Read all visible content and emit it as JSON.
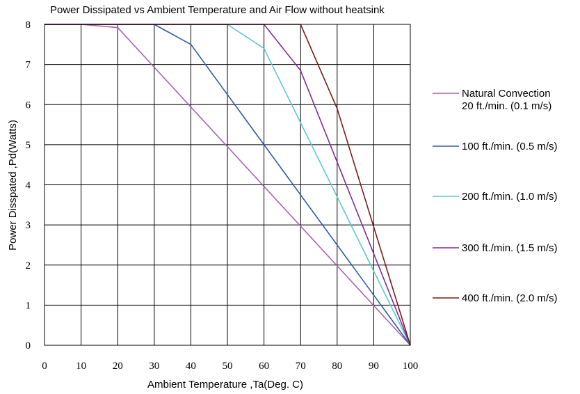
{
  "chart_data": {
    "type": "line",
    "title": "Power Dissipated vs Ambient Temperature and Air Flow without heatsink",
    "xlabel": "Ambient Temperature ,Ta(Deg. C)",
    "ylabel": "Power Disspated ,Pd(Watts)",
    "xlim": [
      0,
      100
    ],
    "ylim": [
      0,
      8
    ],
    "xticks": [
      0,
      10,
      20,
      30,
      40,
      50,
      60,
      70,
      80,
      90,
      100
    ],
    "yticks": [
      0,
      1,
      2,
      3,
      4,
      5,
      6,
      7,
      8
    ],
    "grid": true,
    "legend_position": "right",
    "series": [
      {
        "name": "Natural Convection\n20 ft./min. (0.1 m/s)",
        "color": "#A565B0",
        "x": [
          0,
          10,
          20,
          100
        ],
        "y": [
          8,
          8,
          7.92,
          0
        ]
      },
      {
        "name": "100 ft./min. (0.5 m/s)",
        "color": "#2B5BA8",
        "x": [
          0,
          30,
          40,
          100
        ],
        "y": [
          8,
          8,
          7.5,
          0
        ]
      },
      {
        "name": "200 ft./min. (1.0 m/s)",
        "color": "#5EC8CA",
        "x": [
          0,
          50,
          60,
          100
        ],
        "y": [
          8,
          8,
          7.4,
          0
        ]
      },
      {
        "name": "300 ft./min. (1.5 m/s)",
        "color": "#7E2C96",
        "x": [
          0,
          60,
          70,
          100
        ],
        "y": [
          8,
          8,
          6.85,
          0
        ]
      },
      {
        "name": "400 ft./min. (2.0 m/s)",
        "color": "#7E1A1A",
        "x": [
          0,
          70,
          80,
          100
        ],
        "y": [
          8,
          8,
          5.9,
          0
        ]
      }
    ]
  }
}
